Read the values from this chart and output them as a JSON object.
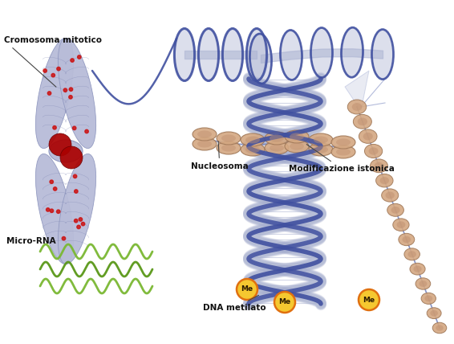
{
  "bg_color": "#ffffff",
  "labels": {
    "cromosoma": "Cromosoma mitotico",
    "nucleosoma": "Nucleosoma",
    "modificazione": "Modificazione istonica",
    "micro_rna": "Micro-RNA",
    "dna_metilato": "DNA metilato",
    "me": "Me"
  },
  "colors": {
    "chromosome": "#b8bcd8",
    "chromosome_dark": "#7880b0",
    "chromosome_outline": "#9098c0",
    "red_dot": "#cc1111",
    "centromere": "#aa0000",
    "helix_blue_dark": "#4050a0",
    "helix_blue_mid": "#6878b8",
    "helix_blue_light": "#a8b0d0",
    "helix_fill": "#c8cce8",
    "nucleosome_light": "#d4a882",
    "nucleosome_mid": "#c09070",
    "nucleosome_dark": "#a07858",
    "rna_green": "#7ab832",
    "rna_green2": "#5a9818",
    "me_yellow": "#f5c830",
    "me_orange": "#e07010",
    "text_color": "#111111",
    "arrow_color": "#444444"
  },
  "figsize": [
    5.66,
    4.28
  ],
  "dpi": 100
}
